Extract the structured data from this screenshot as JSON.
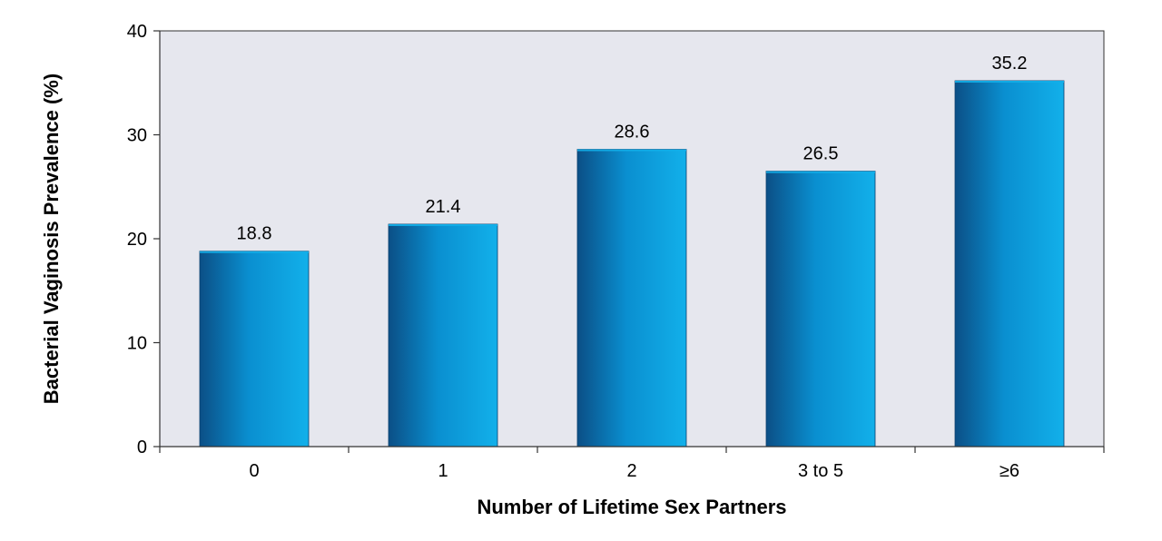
{
  "chart_data": {
    "type": "bar",
    "categories": [
      "0",
      "1",
      "2",
      "3 to 5",
      "≥6"
    ],
    "values": [
      18.8,
      21.4,
      28.6,
      26.5,
      35.2
    ],
    "value_labels": [
      "18.8",
      "21.4",
      "28.6",
      "26.5",
      "35.2"
    ],
    "xlabel": "Number of Lifetime Sex Partners",
    "ylabel": "Bacterial Vaginosis Prevalence (%)",
    "ylim": [
      0,
      40
    ],
    "yticks": [
      "0",
      "10",
      "20",
      "30",
      "40"
    ],
    "ytick_values": [
      0,
      10,
      20,
      30,
      40
    ],
    "grid": false,
    "legend": "none",
    "colors": {
      "plot_background": "#e6e7ee",
      "bar_dark": "#0b4f86",
      "bar_mid": "#0a8fd0",
      "bar_light": "#12b0ea",
      "axis": "#333333"
    }
  }
}
